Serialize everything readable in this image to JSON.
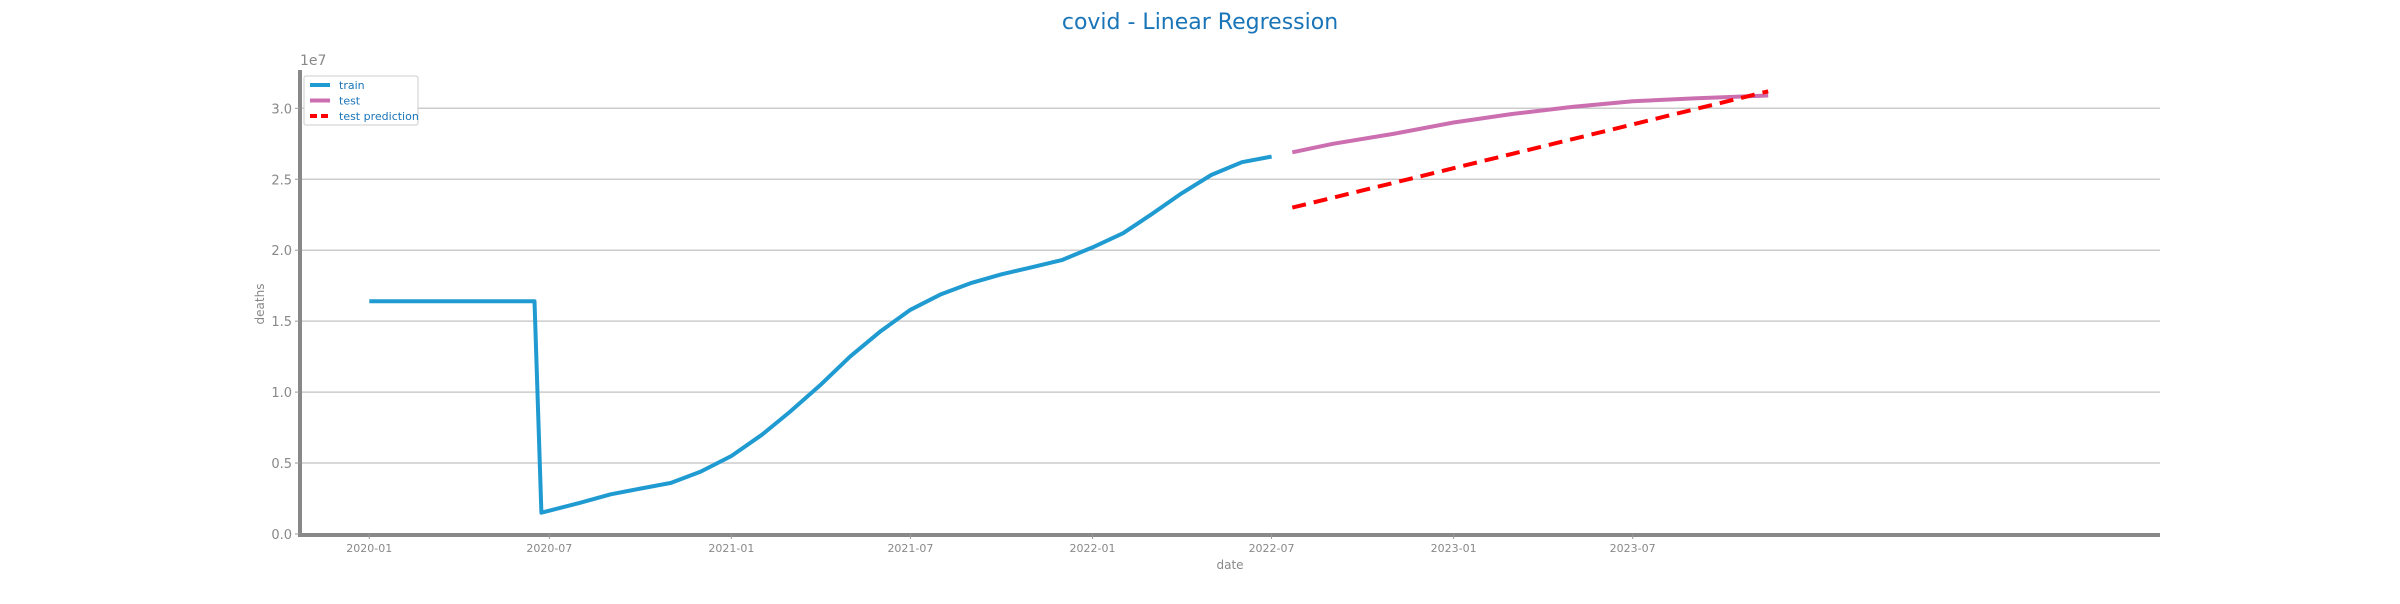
{
  "chart_data": {
    "type": "line",
    "title": "covid - Linear Regression",
    "xlabel": "date",
    "ylabel": "deaths",
    "y_offset_label": "1e7",
    "x_ticks": [
      {
        "date": "2020-01-01",
        "label": "2020-01"
      },
      {
        "date": "2020-07-01",
        "label": "2020-07"
      },
      {
        "date": "2021-01-01",
        "label": "2021-01"
      },
      {
        "date": "2021-07-01",
        "label": "2021-07"
      },
      {
        "date": "2022-01-01",
        "label": "2022-01"
      },
      {
        "date": "2022-07-01",
        "label": "2022-07"
      },
      {
        "date": "2023-01-01",
        "label": "2023-01"
      },
      {
        "date": "2023-07-01",
        "label": "2023-07"
      }
    ],
    "y_ticks": [
      0,
      0.5,
      1.0,
      1.5,
      2.0,
      2.5,
      3.0
    ],
    "y_tick_labels": [
      "0.0",
      "0.5",
      "1.0",
      "1.5",
      "2.0",
      "2.5",
      "3.0"
    ],
    "xlim": [
      "2019-10-23",
      "2024-12-15"
    ],
    "ylim": [
      0,
      3.27
    ],
    "grid": "horizontal",
    "legend_position": "top-left",
    "series": [
      {
        "name": "train",
        "color": "#1f9bd1",
        "style": "solid",
        "points": [
          [
            "2020-01-01",
            1.64
          ],
          [
            "2020-06-16",
            1.64
          ],
          [
            "2020-06-23",
            0.15
          ],
          [
            "2020-08-01",
            0.22
          ],
          [
            "2020-09-01",
            0.28
          ],
          [
            "2020-10-01",
            0.32
          ],
          [
            "2020-11-01",
            0.36
          ],
          [
            "2020-12-01",
            0.44
          ],
          [
            "2021-01-01",
            0.55
          ],
          [
            "2021-02-01",
            0.7
          ],
          [
            "2021-03-01",
            0.86
          ],
          [
            "2021-04-01",
            1.05
          ],
          [
            "2021-05-01",
            1.25
          ],
          [
            "2021-06-01",
            1.43
          ],
          [
            "2021-07-01",
            1.58
          ],
          [
            "2021-08-01",
            1.69
          ],
          [
            "2021-09-01",
            1.77
          ],
          [
            "2021-10-01",
            1.83
          ],
          [
            "2021-11-01",
            1.88
          ],
          [
            "2021-12-01",
            1.93
          ],
          [
            "2022-01-01",
            2.02
          ],
          [
            "2022-02-01",
            2.12
          ],
          [
            "2022-03-01",
            2.25
          ],
          [
            "2022-04-01",
            2.4
          ],
          [
            "2022-05-01",
            2.53
          ],
          [
            "2022-06-01",
            2.62
          ],
          [
            "2022-07-01",
            2.66
          ]
        ]
      },
      {
        "name": "test",
        "color": "#cc6fb0",
        "style": "solid",
        "points": [
          [
            "2022-07-22",
            2.69
          ],
          [
            "2022-09-01",
            2.75
          ],
          [
            "2022-11-01",
            2.82
          ],
          [
            "2023-01-01",
            2.9
          ],
          [
            "2023-03-01",
            2.96
          ],
          [
            "2023-05-01",
            3.01
          ],
          [
            "2023-07-01",
            3.05
          ],
          [
            "2023-09-01",
            3.07
          ],
          [
            "2023-11-15",
            3.09
          ]
        ]
      },
      {
        "name": "test prediction",
        "color": "#ff0000",
        "style": "dashed",
        "points": [
          [
            "2022-07-22",
            2.3
          ],
          [
            "2023-11-15",
            3.12
          ]
        ]
      }
    ]
  }
}
